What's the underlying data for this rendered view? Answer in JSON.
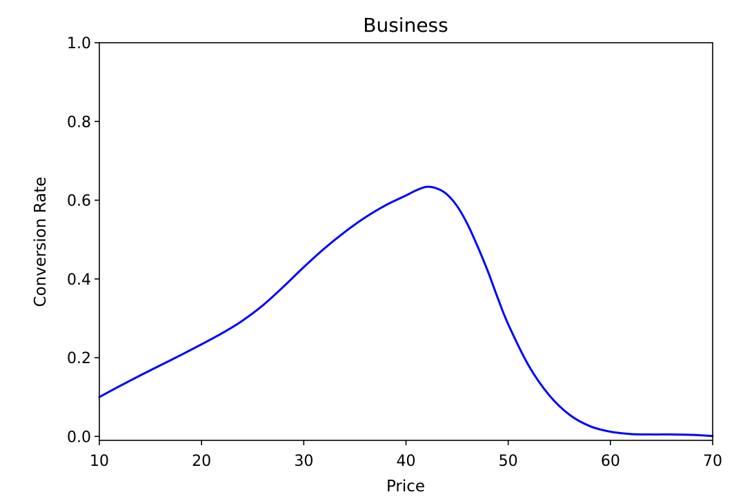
{
  "chart_data": {
    "type": "line",
    "title": "Business",
    "xlabel": "Price",
    "ylabel": "Conversion Rate",
    "xlim": [
      10,
      70
    ],
    "ylim": [
      -0.01,
      1.0
    ],
    "xticks": [
      10,
      20,
      30,
      40,
      50,
      60,
      70
    ],
    "xtick_labels": [
      "10",
      "20",
      "30",
      "40",
      "50",
      "60",
      "70"
    ],
    "yticks": [
      0.0,
      0.2,
      0.4,
      0.6,
      0.8,
      1.0
    ],
    "ytick_labels": [
      "0.0",
      "0.2",
      "0.4",
      "0.6",
      "0.8",
      "1.0"
    ],
    "grid": false,
    "series": [
      {
        "color": "#0000ff",
        "x": [
          10,
          12,
          14,
          16,
          18,
          20,
          22,
          24,
          26,
          28,
          30,
          32,
          34,
          36,
          38,
          40,
          41,
          42,
          43,
          44,
          45,
          46,
          47,
          48,
          49,
          50,
          52,
          54,
          56,
          58,
          60,
          62,
          64,
          66,
          68,
          70
        ],
        "y": [
          0.1,
          0.128,
          0.155,
          0.181,
          0.207,
          0.234,
          0.262,
          0.294,
          0.333,
          0.38,
          0.43,
          0.477,
          0.519,
          0.556,
          0.587,
          0.612,
          0.625,
          0.634,
          0.63,
          0.615,
          0.585,
          0.54,
          0.483,
          0.42,
          0.35,
          0.285,
          0.18,
          0.105,
          0.055,
          0.026,
          0.012,
          0.006,
          0.005,
          0.005,
          0.004,
          0.001
        ]
      }
    ]
  }
}
